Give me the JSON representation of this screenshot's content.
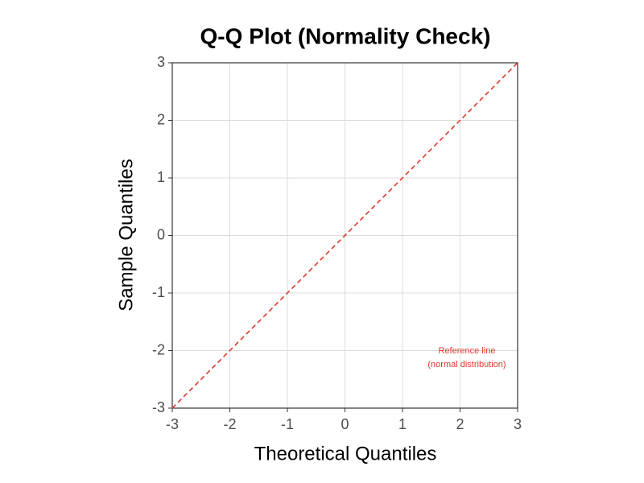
{
  "chart_data": {
    "type": "line",
    "title": "Q-Q Plot (Normality Check)",
    "xlabel": "Theoretical Quantiles",
    "ylabel": "Sample Quantiles",
    "x": [
      -3,
      3
    ],
    "values": [
      -3,
      3
    ],
    "color": "#e0392b",
    "line_style": "dashed",
    "xlim": [
      -3,
      3
    ],
    "ylim": [
      -3,
      3
    ],
    "xticks": [
      -3,
      -2,
      -1,
      0,
      1,
      2,
      3
    ],
    "yticks": [
      -3,
      -2,
      -1,
      0,
      1,
      2,
      3
    ],
    "grid": true,
    "annotation": [
      "Reference line",
      "(normal distribution)"
    ]
  }
}
